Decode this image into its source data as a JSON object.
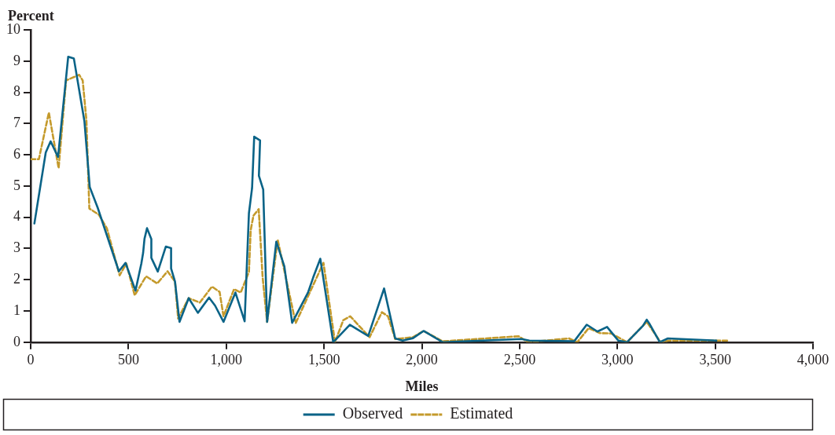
{
  "chart_data": {
    "type": "line",
    "xlabel": "Miles",
    "ylabel": "Percent",
    "xlim": [
      0,
      4000
    ],
    "xticks": [
      0,
      500,
      {
        "value": 1000,
        "label": "1,000"
      },
      {
        "value": 1500,
        "label": "1,500"
      },
      {
        "value": 2000,
        "label": "2,000"
      },
      {
        "value": 2500,
        "label": "2,500"
      },
      {
        "value": 3000,
        "label": "3,000"
      },
      {
        "value": 3500,
        "label": "3,500"
      },
      {
        "value": 4000,
        "label": "4,000"
      }
    ],
    "ylim": [
      0,
      10
    ],
    "yticks": [
      0,
      1,
      2,
      3,
      4,
      5,
      6,
      7,
      8,
      9,
      10
    ],
    "grid": false,
    "legend": "bottom",
    "marker": "none",
    "series": [
      {
        "name": "Observed",
        "color": "#0a6387",
        "line_style": "solid",
        "x": [
          19,
          77,
          102,
          140,
          192,
          221,
          275,
          302,
          343,
          451,
          485,
          536,
          566,
          575,
          582,
          595,
          617,
          617,
          650,
          691,
          718,
          718,
          738,
          761,
          808,
          855,
          912,
          943,
          986,
          1047,
          1094,
          1116,
          1132,
          1143,
          1173,
          1167,
          1189,
          1209,
          1256,
          1297,
          1337,
          1418,
          1445,
          1481,
          1547,
          1632,
          1726,
          1807,
          1864,
          1902,
          1955,
          2009,
          2107,
          2509,
          2550,
          2779,
          2843,
          2898,
          2947,
          3005,
          3049,
          3130,
          3150,
          3163,
          3217,
          3258,
          3506
        ],
        "values": [
          3.8,
          6.07,
          6.43,
          5.93,
          9.14,
          9.08,
          7.07,
          4.97,
          4.3,
          2.27,
          2.54,
          1.65,
          2.52,
          2.86,
          3.31,
          3.65,
          3.3,
          2.7,
          2.26,
          3.06,
          3.01,
          2.36,
          1.94,
          0.65,
          1.41,
          0.94,
          1.43,
          1.17,
          0.65,
          1.59,
          0.67,
          4.13,
          4.93,
          6.58,
          6.46,
          5.33,
          4.89,
          0.65,
          3.22,
          2.43,
          0.62,
          1.59,
          2.08,
          2.67,
          0,
          0.56,
          0.2,
          1.72,
          0.12,
          0.05,
          0.13,
          0.36,
          0,
          0.1,
          0.05,
          0.03,
          0.56,
          0.34,
          0.49,
          0.05,
          0,
          0.52,
          0.72,
          0.6,
          0,
          0.12,
          0.05
        ]
      },
      {
        "name": "Estimated",
        "color": "#c49a2c",
        "line_style": "dashed",
        "x": [
          0,
          42,
          93,
          143,
          181,
          248,
          266,
          285,
          300,
          349,
          390,
          455,
          489,
          532,
          590,
          647,
          700,
          738,
          754,
          808,
          865,
          927,
          966,
          986,
          1040,
          1074,
          1116,
          1125,
          1139,
          1166,
          1186,
          1209,
          1263,
          1355,
          1497,
          1556,
          1598,
          1634,
          1733,
          1796,
          1827,
          1864,
          1955,
          2009,
          2100,
          2110,
          2495,
          2543,
          2752,
          2795,
          2853,
          2911,
          2968,
          3049,
          3150,
          3221,
          3262,
          3561
        ],
        "values": [
          5.86,
          5.86,
          7.35,
          5.57,
          8.38,
          8.56,
          8.38,
          7.11,
          4.28,
          4.08,
          3.64,
          2.14,
          2.52,
          1.5,
          2.11,
          1.88,
          2.27,
          1.94,
          0.76,
          1.41,
          1.27,
          1.78,
          1.61,
          0.83,
          1.7,
          1.59,
          2.25,
          3.59,
          4.05,
          4.26,
          2.08,
          0.65,
          3.28,
          0.61,
          2.54,
          0,
          0.7,
          0.83,
          0.16,
          0.96,
          0.83,
          0.1,
          0.16,
          0.36,
          0.05,
          0.03,
          0.19,
          0,
          0.12,
          0,
          0.45,
          0.29,
          0.28,
          0,
          0.65,
          0,
          0.05,
          0.05
        ]
      }
    ]
  }
}
